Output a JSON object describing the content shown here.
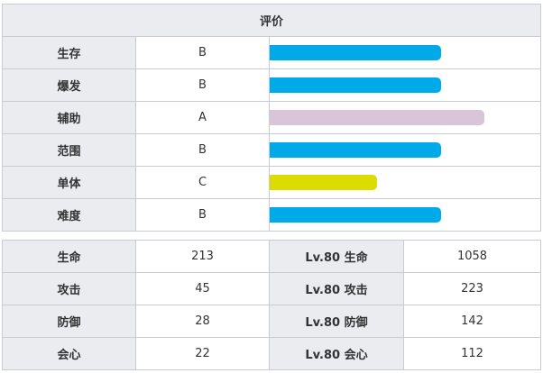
{
  "rating": {
    "title": "评价",
    "rows": [
      {
        "label": "生存",
        "grade": "B",
        "level": 0.8,
        "color": "#00a9e8"
      },
      {
        "label": "爆发",
        "grade": "B",
        "level": 0.8,
        "color": "#00a9e8"
      },
      {
        "label": "辅助",
        "grade": "A",
        "level": 1.0,
        "color": "#d8c6d8"
      },
      {
        "label": "范围",
        "grade": "B",
        "level": 0.8,
        "color": "#00a9e8"
      },
      {
        "label": "单体",
        "grade": "C",
        "level": 0.5,
        "color": "#dcdc00"
      },
      {
        "label": "难度",
        "grade": "B",
        "level": 0.8,
        "color": "#00a9e8"
      }
    ]
  },
  "stats": {
    "rows": [
      {
        "label": "生命",
        "value": "213",
        "lv_label": "Lv.80 生命",
        "lv_value": "1058"
      },
      {
        "label": "攻击",
        "value": "45",
        "lv_label": "Lv.80 攻击",
        "lv_value": "223"
      },
      {
        "label": "防御",
        "value": "28",
        "lv_label": "Lv.80 防御",
        "lv_value": "142"
      },
      {
        "label": "会心",
        "value": "22",
        "lv_label": "Lv.80 会心",
        "lv_value": "112"
      }
    ]
  }
}
